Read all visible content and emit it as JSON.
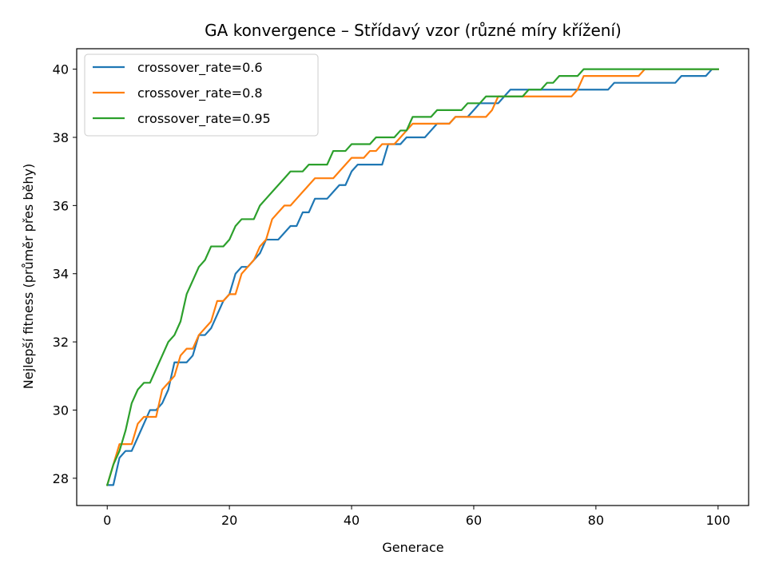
{
  "chart_data": {
    "type": "line",
    "title": "GA konvergence – Střídavý vzor (různé míry křížení)",
    "xlabel": "Generace",
    "ylabel": "Nejlepší fitness (průměr přes běhy)",
    "xlim": [
      -5,
      105
    ],
    "ylim": [
      27.2,
      40.6
    ],
    "xticks": [
      0,
      20,
      40,
      60,
      80,
      100
    ],
    "yticks": [
      28,
      30,
      32,
      34,
      36,
      38,
      40
    ],
    "grid": false,
    "legend_position": "upper-left",
    "series": [
      {
        "name": "crossover_rate=0.6",
        "color": "#1f77b4",
        "points": [
          [
            0,
            27.8
          ],
          [
            1,
            27.8
          ],
          [
            2,
            28.6
          ],
          [
            3,
            28.8
          ],
          [
            4,
            28.8
          ],
          [
            5,
            29.2
          ],
          [
            6,
            29.6
          ],
          [
            7,
            30.0
          ],
          [
            8,
            30.0
          ],
          [
            9,
            30.2
          ],
          [
            10,
            30.6
          ],
          [
            11,
            31.4
          ],
          [
            12,
            31.4
          ],
          [
            13,
            31.4
          ],
          [
            14,
            31.6
          ],
          [
            15,
            32.2
          ],
          [
            16,
            32.2
          ],
          [
            17,
            32.4
          ],
          [
            18,
            32.8
          ],
          [
            19,
            33.2
          ],
          [
            20,
            33.4
          ],
          [
            21,
            34.0
          ],
          [
            22,
            34.2
          ],
          [
            23,
            34.2
          ],
          [
            24,
            34.4
          ],
          [
            25,
            34.6
          ],
          [
            26,
            35.0
          ],
          [
            27,
            35.0
          ],
          [
            28,
            35.0
          ],
          [
            29,
            35.2
          ],
          [
            30,
            35.4
          ],
          [
            31,
            35.4
          ],
          [
            32,
            35.8
          ],
          [
            33,
            35.8
          ],
          [
            34,
            36.2
          ],
          [
            35,
            36.2
          ],
          [
            36,
            36.2
          ],
          [
            37,
            36.4
          ],
          [
            38,
            36.6
          ],
          [
            39,
            36.6
          ],
          [
            40,
            37.0
          ],
          [
            41,
            37.2
          ],
          [
            42,
            37.2
          ],
          [
            43,
            37.2
          ],
          [
            44,
            37.2
          ],
          [
            45,
            37.2
          ],
          [
            46,
            37.8
          ],
          [
            47,
            37.8
          ],
          [
            48,
            37.8
          ],
          [
            49,
            38.0
          ],
          [
            50,
            38.0
          ],
          [
            51,
            38.0
          ],
          [
            52,
            38.0
          ],
          [
            53,
            38.2
          ],
          [
            54,
            38.4
          ],
          [
            55,
            38.4
          ],
          [
            56,
            38.4
          ],
          [
            57,
            38.6
          ],
          [
            58,
            38.6
          ],
          [
            59,
            38.6
          ],
          [
            60,
            38.8
          ],
          [
            61,
            39.0
          ],
          [
            62,
            39.0
          ],
          [
            63,
            39.0
          ],
          [
            64,
            39.0
          ],
          [
            65,
            39.2
          ],
          [
            66,
            39.4
          ],
          [
            67,
            39.4
          ],
          [
            68,
            39.4
          ],
          [
            69,
            39.4
          ],
          [
            70,
            39.4
          ],
          [
            75,
            39.4
          ],
          [
            80,
            39.4
          ],
          [
            82,
            39.4
          ],
          [
            83,
            39.6
          ],
          [
            85,
            39.6
          ],
          [
            90,
            39.6
          ],
          [
            93,
            39.6
          ],
          [
            94,
            39.8
          ],
          [
            95,
            39.8
          ],
          [
            98,
            39.8
          ],
          [
            99,
            40.0
          ],
          [
            100,
            40.0
          ]
        ]
      },
      {
        "name": "crossover_rate=0.8",
        "color": "#ff7f0e",
        "points": [
          [
            0,
            27.8
          ],
          [
            1,
            28.4
          ],
          [
            2,
            29.0
          ],
          [
            3,
            29.0
          ],
          [
            4,
            29.0
          ],
          [
            5,
            29.6
          ],
          [
            6,
            29.8
          ],
          [
            7,
            29.8
          ],
          [
            8,
            29.8
          ],
          [
            9,
            30.6
          ],
          [
            10,
            30.8
          ],
          [
            11,
            31.0
          ],
          [
            12,
            31.6
          ],
          [
            13,
            31.8
          ],
          [
            14,
            31.8
          ],
          [
            15,
            32.2
          ],
          [
            16,
            32.4
          ],
          [
            17,
            32.6
          ],
          [
            18,
            33.2
          ],
          [
            19,
            33.2
          ],
          [
            20,
            33.4
          ],
          [
            21,
            33.4
          ],
          [
            22,
            34.0
          ],
          [
            23,
            34.2
          ],
          [
            24,
            34.4
          ],
          [
            25,
            34.8
          ],
          [
            26,
            35.0
          ],
          [
            27,
            35.6
          ],
          [
            28,
            35.8
          ],
          [
            29,
            36.0
          ],
          [
            30,
            36.0
          ],
          [
            31,
            36.2
          ],
          [
            32,
            36.4
          ],
          [
            33,
            36.6
          ],
          [
            34,
            36.8
          ],
          [
            35,
            36.8
          ],
          [
            36,
            36.8
          ],
          [
            37,
            36.8
          ],
          [
            38,
            37.0
          ],
          [
            39,
            37.2
          ],
          [
            40,
            37.4
          ],
          [
            41,
            37.4
          ],
          [
            42,
            37.4
          ],
          [
            43,
            37.6
          ],
          [
            44,
            37.6
          ],
          [
            45,
            37.8
          ],
          [
            46,
            37.8
          ],
          [
            47,
            37.8
          ],
          [
            48,
            38.0
          ],
          [
            49,
            38.2
          ],
          [
            50,
            38.4
          ],
          [
            51,
            38.4
          ],
          [
            52,
            38.4
          ],
          [
            53,
            38.4
          ],
          [
            54,
            38.4
          ],
          [
            55,
            38.4
          ],
          [
            56,
            38.4
          ],
          [
            57,
            38.6
          ],
          [
            58,
            38.6
          ],
          [
            59,
            38.6
          ],
          [
            60,
            38.6
          ],
          [
            61,
            38.6
          ],
          [
            62,
            38.6
          ],
          [
            63,
            38.8
          ],
          [
            64,
            39.2
          ],
          [
            65,
            39.2
          ],
          [
            66,
            39.2
          ],
          [
            67,
            39.2
          ],
          [
            68,
            39.2
          ],
          [
            70,
            39.2
          ],
          [
            72,
            39.2
          ],
          [
            75,
            39.2
          ],
          [
            76,
            39.2
          ],
          [
            77,
            39.4
          ],
          [
            78,
            39.8
          ],
          [
            80,
            39.8
          ],
          [
            85,
            39.8
          ],
          [
            87,
            39.8
          ],
          [
            88,
            40.0
          ],
          [
            90,
            40.0
          ],
          [
            95,
            40.0
          ],
          [
            100,
            40.0
          ]
        ]
      },
      {
        "name": "crossover_rate=0.95",
        "color": "#2ca02c",
        "points": [
          [
            0,
            27.8
          ],
          [
            1,
            28.4
          ],
          [
            2,
            28.8
          ],
          [
            3,
            29.4
          ],
          [
            4,
            30.2
          ],
          [
            5,
            30.6
          ],
          [
            6,
            30.8
          ],
          [
            7,
            30.8
          ],
          [
            8,
            31.2
          ],
          [
            9,
            31.6
          ],
          [
            10,
            32.0
          ],
          [
            11,
            32.2
          ],
          [
            12,
            32.6
          ],
          [
            13,
            33.4
          ],
          [
            14,
            33.8
          ],
          [
            15,
            34.2
          ],
          [
            16,
            34.4
          ],
          [
            17,
            34.8
          ],
          [
            18,
            34.8
          ],
          [
            19,
            34.8
          ],
          [
            20,
            35.0
          ],
          [
            21,
            35.4
          ],
          [
            22,
            35.6
          ],
          [
            23,
            35.6
          ],
          [
            24,
            35.6
          ],
          [
            25,
            36.0
          ],
          [
            26,
            36.2
          ],
          [
            27,
            36.4
          ],
          [
            28,
            36.6
          ],
          [
            29,
            36.8
          ],
          [
            30,
            37.0
          ],
          [
            31,
            37.0
          ],
          [
            32,
            37.0
          ],
          [
            33,
            37.2
          ],
          [
            34,
            37.2
          ],
          [
            35,
            37.2
          ],
          [
            36,
            37.2
          ],
          [
            37,
            37.6
          ],
          [
            38,
            37.6
          ],
          [
            39,
            37.6
          ],
          [
            40,
            37.8
          ],
          [
            41,
            37.8
          ],
          [
            42,
            37.8
          ],
          [
            43,
            37.8
          ],
          [
            44,
            38.0
          ],
          [
            45,
            38.0
          ],
          [
            46,
            38.0
          ],
          [
            47,
            38.0
          ],
          [
            48,
            38.2
          ],
          [
            49,
            38.2
          ],
          [
            50,
            38.6
          ],
          [
            51,
            38.6
          ],
          [
            52,
            38.6
          ],
          [
            53,
            38.6
          ],
          [
            54,
            38.8
          ],
          [
            55,
            38.8
          ],
          [
            56,
            38.8
          ],
          [
            57,
            38.8
          ],
          [
            58,
            38.8
          ],
          [
            59,
            39.0
          ],
          [
            60,
            39.0
          ],
          [
            61,
            39.0
          ],
          [
            62,
            39.2
          ],
          [
            63,
            39.2
          ],
          [
            64,
            39.2
          ],
          [
            65,
            39.2
          ],
          [
            66,
            39.2
          ],
          [
            67,
            39.2
          ],
          [
            68,
            39.2
          ],
          [
            69,
            39.4
          ],
          [
            70,
            39.4
          ],
          [
            71,
            39.4
          ],
          [
            72,
            39.6
          ],
          [
            73,
            39.6
          ],
          [
            74,
            39.8
          ],
          [
            75,
            39.8
          ],
          [
            76,
            39.8
          ],
          [
            77,
            39.8
          ],
          [
            78,
            40.0
          ],
          [
            80,
            40.0
          ],
          [
            85,
            40.0
          ],
          [
            90,
            40.0
          ],
          [
            95,
            40.0
          ],
          [
            100,
            40.0
          ]
        ]
      }
    ]
  }
}
